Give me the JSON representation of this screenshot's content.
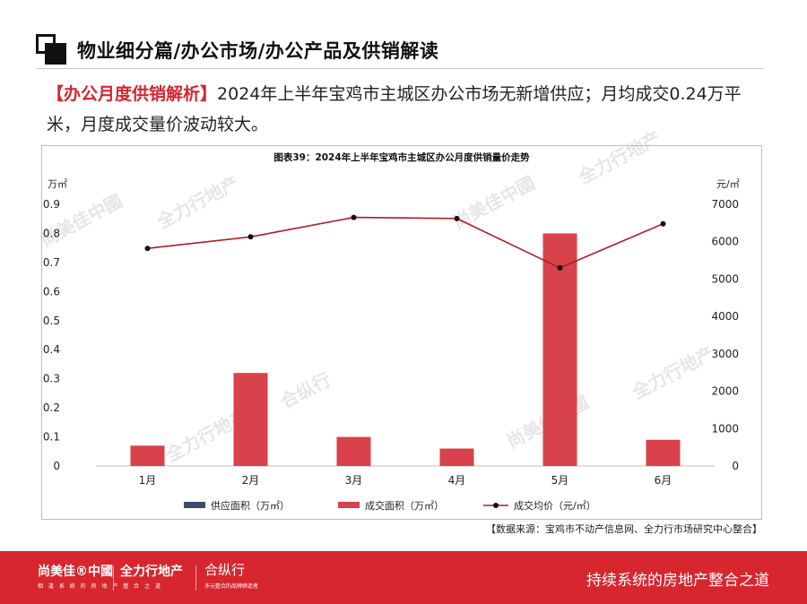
{
  "header": {
    "title": "物业细分篇/办公市场/办公产品及供销解读"
  },
  "summary": {
    "tag": "【办公月度供销解析】",
    "text": "2024年上半年宝鸡市主城区办公市场无新增供应；月均成交0.24万平米，月度成交量价波动较大。"
  },
  "chart_data": {
    "type": "bar",
    "title": "图表39：2024年上半年宝鸡市主城区办公月度供销量价走势",
    "categories": [
      "1月",
      "2月",
      "3月",
      "4月",
      "5月",
      "6月"
    ],
    "y_left": {
      "unit": "万㎡",
      "ylim": [
        0,
        0.9
      ],
      "ticks": [
        "0",
        "0.1",
        "0.2",
        "0.3",
        "0.4",
        "0.5",
        "0.6",
        "0.7",
        "0.8",
        "0.9"
      ]
    },
    "y_right": {
      "unit": "元/㎡",
      "ylim": [
        0,
        7000
      ],
      "ticks": [
        "0",
        "1000",
        "2000",
        "3000",
        "4000",
        "5000",
        "6000",
        "7000"
      ]
    },
    "series": [
      {
        "name": "供应面积（万㎡）",
        "type": "bar",
        "axis": "left",
        "color": "#3d4a6b",
        "values": [
          0,
          0,
          0,
          0,
          0,
          0
        ]
      },
      {
        "name": "成交面积（万㎡）",
        "type": "bar",
        "axis": "left",
        "color": "#d9424a",
        "values": [
          0.07,
          0.32,
          0.1,
          0.06,
          0.8,
          0.09
        ]
      },
      {
        "name": "成交均价（元/㎡）",
        "type": "line",
        "axis": "right",
        "color": "#b01c24",
        "values": [
          5820,
          6130,
          6650,
          6620,
          5300,
          6480
        ]
      }
    ],
    "legend_position": "bottom",
    "grid": false
  },
  "source": "【数据来源：宝鸡市不动产信息网、全力行市场研究中心整合】",
  "footer": {
    "brand1": "尚美佳®中國",
    "brand1_sub": "相 逢 系 统 的 房 地 产 整 合 之 道",
    "brand2": "全力行地产",
    "brand3": "合纵行",
    "brand3_sub": "多元整合的品牌缔造者",
    "slogan": "持续系统的房地产整合之道"
  },
  "watermarks": [
    "尚美佳中國",
    "全力行地产",
    "合纵行"
  ]
}
